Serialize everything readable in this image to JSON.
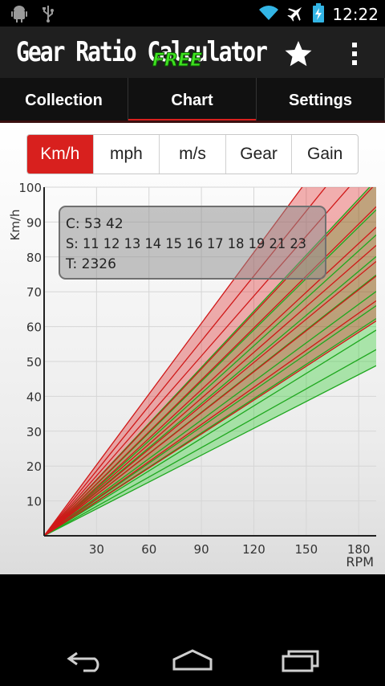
{
  "status": {
    "time": "12:22"
  },
  "app": {
    "title": "Gear Ratio Calculator",
    "badge": "FREE"
  },
  "tabs": [
    {
      "label": "Collection",
      "active": false
    },
    {
      "label": "Chart",
      "active": true
    },
    {
      "label": "Settings",
      "active": false
    }
  ],
  "units": [
    {
      "label": "Km/h",
      "active": true
    },
    {
      "label": "mph",
      "active": false
    },
    {
      "label": "m/s",
      "active": false
    },
    {
      "label": "Gear",
      "active": false
    },
    {
      "label": "Gain",
      "active": false
    }
  ],
  "info": {
    "chainrings": "C: 53 42",
    "sprockets": "S: 11 12 13 14 15 16 17 18 19 21 23",
    "tire": "T: 2326"
  },
  "colors": {
    "accent": "#d8201e",
    "red_band": "#e02020",
    "green_band": "#22cc22"
  },
  "chart_data": {
    "type": "line",
    "xlabel": "RPM",
    "ylabel": "Km/h",
    "xlim": [
      0,
      190
    ],
    "ylim": [
      0,
      100
    ],
    "xticks": [
      30,
      60,
      90,
      120,
      150,
      180
    ],
    "yticks": [
      10,
      20,
      30,
      40,
      50,
      60,
      70,
      80,
      90,
      100
    ],
    "grid": true,
    "series": [
      {
        "values_at_190": [
          128.7,
          118.0,
          108.9,
          101.1,
          94.4,
          88.5,
          83.3,
          78.7,
          74.5,
          67.4,
          61.6
        ]
      },
      {
        "values_at_190": [
          102.0,
          93.5,
          86.3,
          80.1,
          74.8,
          70.1,
          66.0,
          62.3,
          59.0,
          53.4,
          48.8
        ]
      }
    ]
  }
}
